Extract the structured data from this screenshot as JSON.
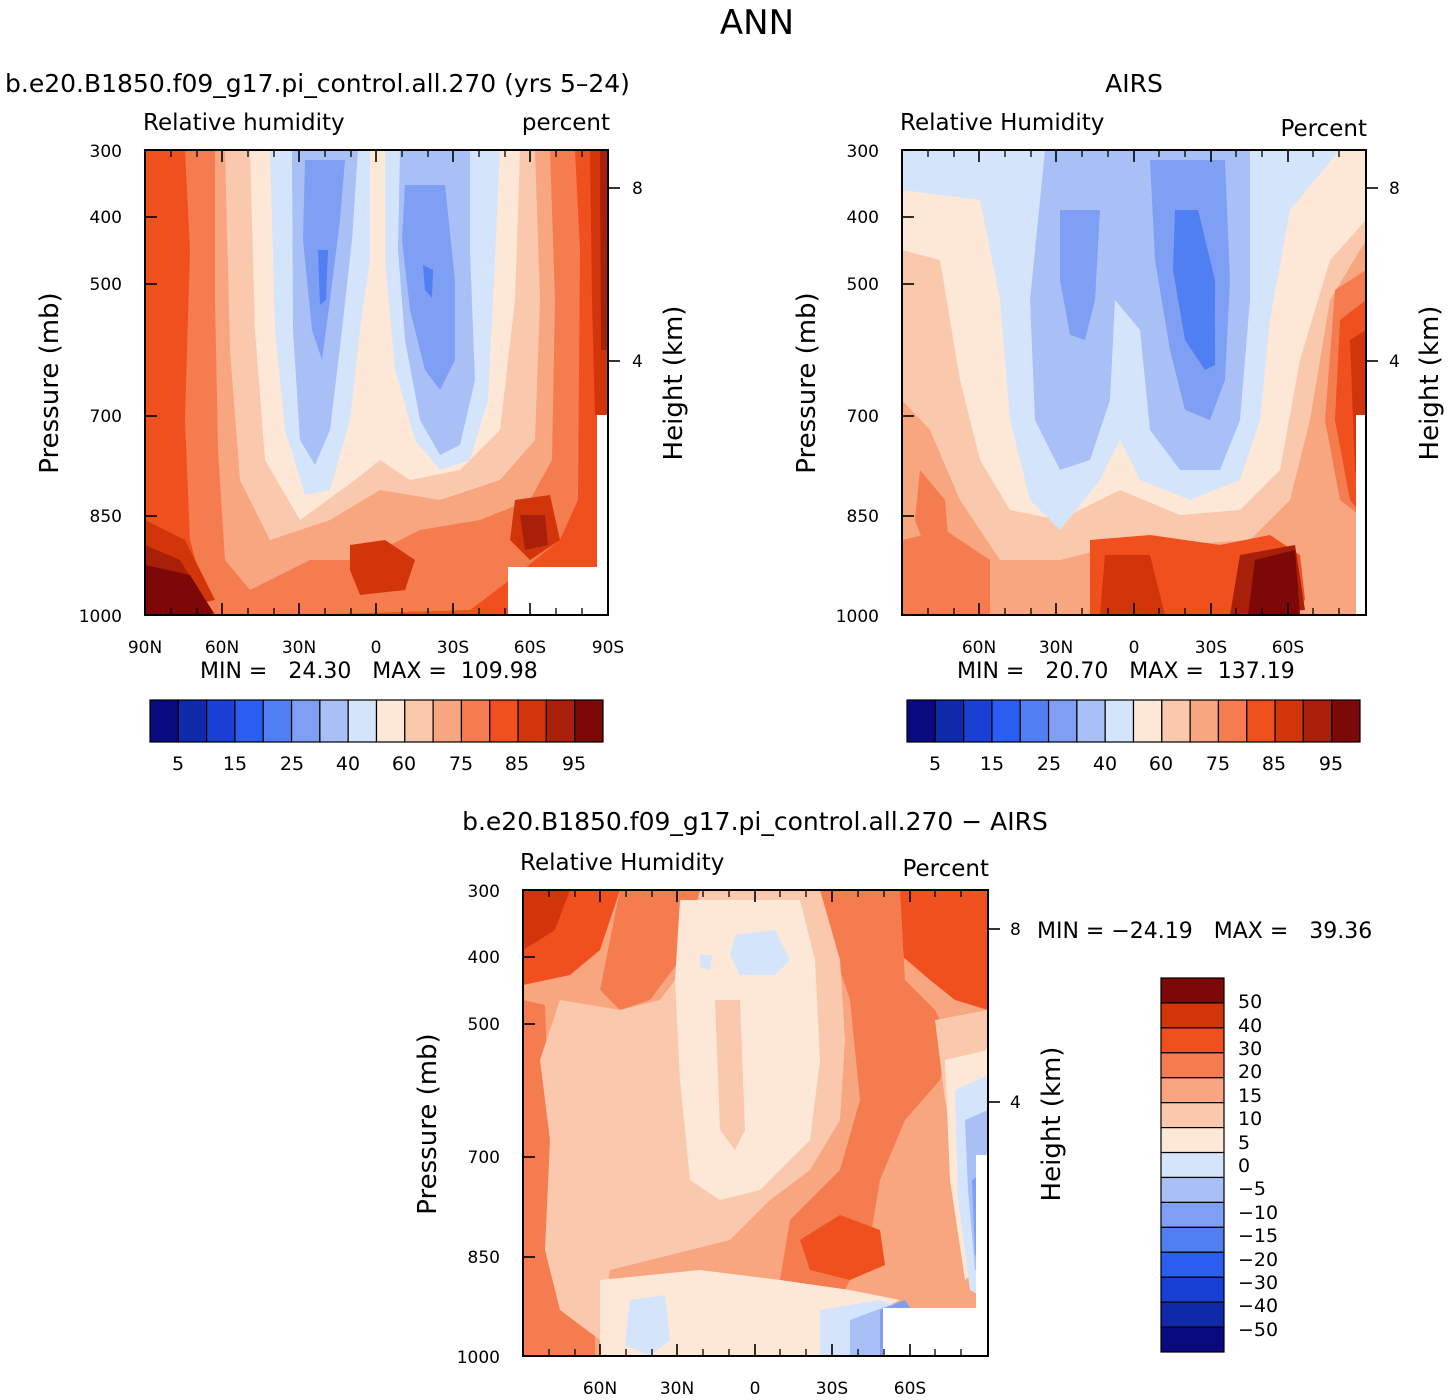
{
  "page_title": "ANN",
  "colors": {
    "seq_scale": [
      "#0a0a80",
      "#0f2aa8",
      "#1a3fd4",
      "#2a5ef0",
      "#4f7ff2",
      "#7f9ff4",
      "#a9c0f6",
      "#d4e5fb",
      "#fde8d7",
      "#fac9ad",
      "#f7a67f",
      "#f57c4f",
      "#f04f1e",
      "#d3350b",
      "#a81f0a",
      "#7c0808"
    ],
    "diff_scale": [
      "#0a0a80",
      "#0f2aa8",
      "#1a3fd4",
      "#2a5ef0",
      "#4f7ff2",
      "#7f9ff4",
      "#a9c0f6",
      "#d4e5fb",
      "#fde8d7",
      "#fac9ad",
      "#f7a67f",
      "#f57c4f",
      "#f04f1e",
      "#d3350b",
      "#7c0808"
    ]
  },
  "chart_data": [
    {
      "type": "heatmap",
      "title": "b.e20.B1850.f09_g17.pi_control.all.270 (yrs 5–24)",
      "subtitle_left": "Relative humidity",
      "subtitle_right": "percent",
      "xlabel": "",
      "ylabel": "Pressure (mb)",
      "ylabel_right": "Height (km)",
      "x_ticks": [
        "90N",
        "60N",
        "30N",
        "0",
        "30S",
        "60S",
        "90S"
      ],
      "y_ticks": [
        "300",
        "400",
        "500",
        "700",
        "850",
        "1000"
      ],
      "y_right_ticks": [
        "8",
        "4"
      ],
      "stats": "MIN =   24.30   MAX =  109.98",
      "colorbar_labels": [
        "5",
        "15",
        "25",
        "40",
        "60",
        "75",
        "85",
        "95"
      ],
      "xlim": [
        90,
        -90
      ],
      "ylim": [
        1000,
        300
      ]
    },
    {
      "type": "heatmap",
      "title": "AIRS",
      "subtitle_left": "Relative Humidity",
      "subtitle_right": "Percent",
      "xlabel": "",
      "ylabel": "Pressure (mb)",
      "ylabel_right": "Height (km)",
      "x_ticks": [
        "60N",
        "30N",
        "0",
        "30S",
        "60S"
      ],
      "y_ticks": [
        "300",
        "400",
        "500",
        "700",
        "850",
        "1000"
      ],
      "y_right_ticks": [
        "8",
        "4"
      ],
      "stats": "MIN =   20.70   MAX =  137.19",
      "colorbar_labels": [
        "5",
        "15",
        "25",
        "40",
        "60",
        "75",
        "85",
        "95"
      ],
      "xlim": [
        90,
        -90
      ],
      "ylim": [
        1000,
        300
      ]
    },
    {
      "type": "heatmap",
      "title": "b.e20.B1850.f09_g17.pi_control.all.270 − AIRS",
      "subtitle_left": "Relative Humidity",
      "subtitle_right": "Percent",
      "xlabel": "",
      "ylabel": "Pressure (mb)",
      "ylabel_right": "Height (km)",
      "x_ticks": [
        "60N",
        "30N",
        "0",
        "30S",
        "60S"
      ],
      "y_ticks": [
        "300",
        "400",
        "500",
        "700",
        "850",
        "1000"
      ],
      "y_right_ticks": [
        "8",
        "4"
      ],
      "stats": "MIN = −24.19   MAX =   39.36",
      "colorbar_labels": [
        "50",
        "40",
        "30",
        "20",
        "15",
        "10",
        "5",
        "0",
        "−5",
        "−10",
        "−15",
        "−20",
        "−30",
        "−40",
        "−50"
      ],
      "xlim": [
        90,
        -90
      ],
      "ylim": [
        1000,
        300
      ]
    }
  ]
}
